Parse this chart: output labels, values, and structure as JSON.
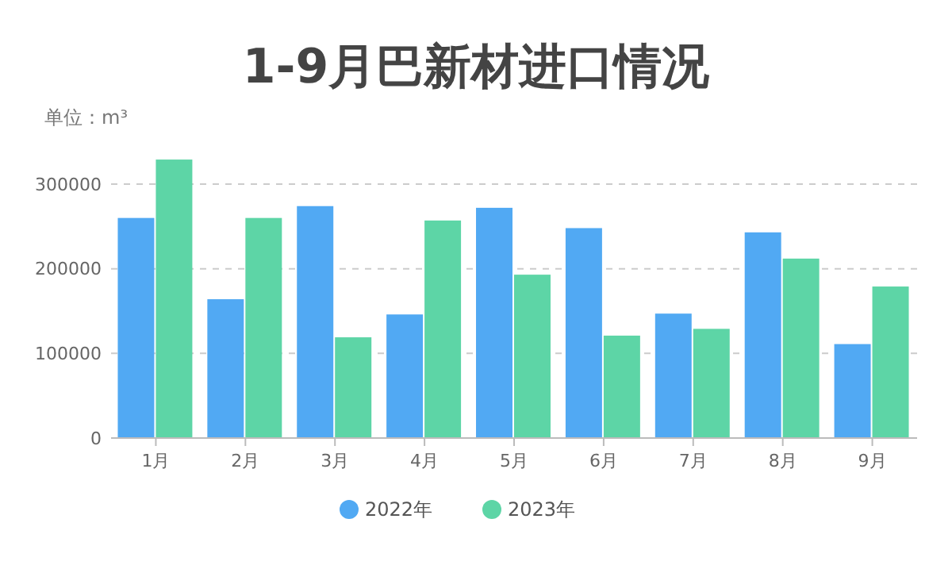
{
  "chart_data": {
    "type": "bar",
    "title": "1-9月巴新材进口情况",
    "subtitle": "单位：m³",
    "categories": [
      "1月",
      "2月",
      "3月",
      "4月",
      "5月",
      "6月",
      "7月",
      "8月",
      "9月"
    ],
    "series": [
      {
        "name": "2022年",
        "color": "#51a9f3",
        "values": [
          260000,
          164000,
          274000,
          146000,
          272000,
          248000,
          147000,
          243000,
          111000
        ]
      },
      {
        "name": "2023年",
        "color": "#5dd5a6",
        "values": [
          329000,
          260000,
          119000,
          257000,
          193000,
          121000,
          129000,
          212000,
          179000
        ]
      }
    ],
    "ylim": [
      0,
      330000
    ],
    "yticks": [
      0,
      100000,
      200000,
      300000
    ],
    "grid": "y",
    "legend": "bottom"
  }
}
